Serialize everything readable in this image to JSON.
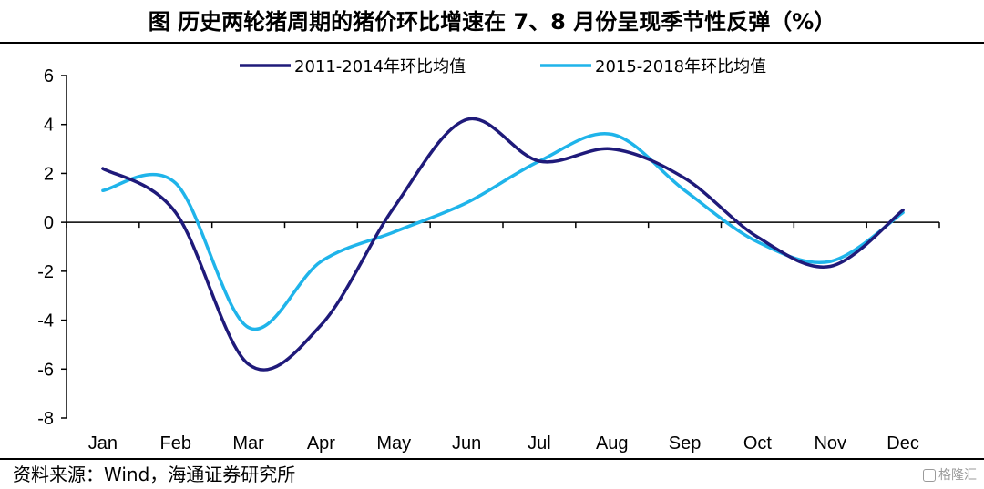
{
  "header": {
    "title": "图  历史两轮猪周期的猪价环比增速在 7、8 月份呈现季节性反弹（%）"
  },
  "footer": {
    "source": "资料来源：Wind，海通证券研究所",
    "watermark": "格隆汇"
  },
  "chart_data": {
    "type": "line",
    "title": "历史两轮猪周期的猪价环比增速在 7、8 月份呈现季节性反弹（%）",
    "xlabel": "",
    "ylabel": "",
    "categories": [
      "Jan",
      "Feb",
      "Mar",
      "Apr",
      "May",
      "Jun",
      "Jul",
      "Aug",
      "Sep",
      "Oct",
      "Nov",
      "Dec"
    ],
    "ylim": [
      -8,
      6
    ],
    "yticks": [
      "6",
      "4",
      "2",
      "0",
      "-2",
      "-4",
      "-6",
      "-8"
    ],
    "grid": false,
    "legend_position": "top-center",
    "series": [
      {
        "name": "2011-2014年环比均值",
        "color": "#1f1a7a",
        "values": [
          2.2,
          0.4,
          -5.8,
          -4.2,
          0.6,
          4.2,
          2.5,
          3.0,
          1.8,
          -0.6,
          -1.8,
          0.5
        ]
      },
      {
        "name": "2015-2018年环比均值",
        "color": "#1fb4ea",
        "values": [
          1.3,
          1.6,
          -4.3,
          -1.6,
          -0.4,
          0.8,
          2.5,
          3.6,
          1.3,
          -0.8,
          -1.6,
          0.4
        ]
      }
    ]
  }
}
